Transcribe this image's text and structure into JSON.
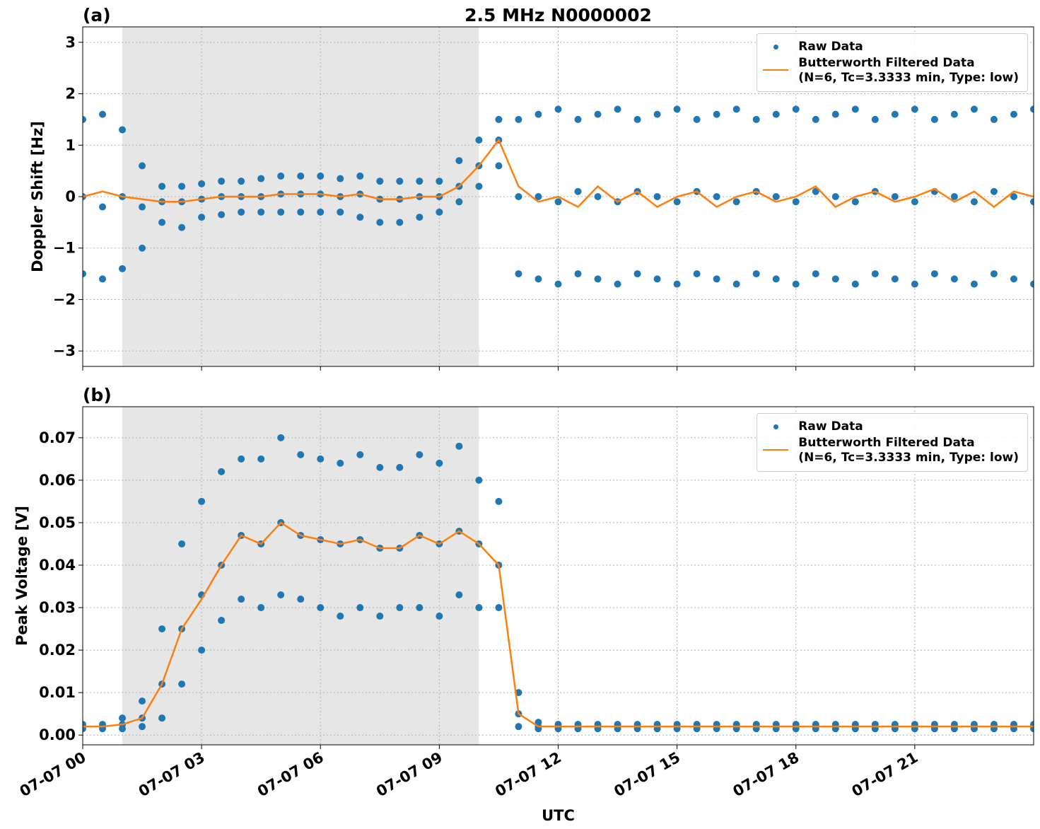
{
  "chart_data": [
    {
      "type": "scatter",
      "panel_label": "(a)",
      "title": "2.5 MHz N0000002",
      "ylabel": "Doppler Shift [Hz]",
      "xlim": [
        0,
        24
      ],
      "ylim": [
        -3.3,
        3.3
      ],
      "xticks": [
        {
          "value": 0,
          "label": "07-07 00"
        },
        {
          "value": 3,
          "label": "07-07 03"
        },
        {
          "value": 6,
          "label": "07-07 06"
        },
        {
          "value": 9,
          "label": "07-07 09"
        },
        {
          "value": 12,
          "label": "07-07 12"
        },
        {
          "value": 15,
          "label": "07-07 15"
        },
        {
          "value": 18,
          "label": "07-07 18"
        },
        {
          "value": 21,
          "label": "07-07 21"
        }
      ],
      "yticks": [
        {
          "value": -3,
          "label": "−3"
        },
        {
          "value": -2,
          "label": "−2"
        },
        {
          "value": -1,
          "label": "−1"
        },
        0,
        1,
        2,
        3
      ],
      "shaded_xrange": [
        1,
        10
      ],
      "grid": true,
      "legend": "upper right",
      "series": [
        {
          "name": "Raw Data",
          "type": "scatter",
          "color": "#1f77b4",
          "x": [
            0,
            0,
            0,
            0.5,
            0.5,
            0.5,
            1,
            1,
            1,
            1.5,
            1.5,
            1.5,
            2,
            2,
            2,
            2.5,
            2.5,
            2.5,
            3,
            3,
            3,
            3.5,
            3.5,
            3.5,
            4,
            4,
            4,
            4.5,
            4.5,
            4.5,
            5,
            5,
            5,
            5.5,
            5.5,
            5.5,
            6,
            6,
            6,
            6.5,
            6.5,
            6.5,
            7,
            7,
            7,
            7.5,
            7.5,
            7.5,
            8,
            8,
            8,
            8.5,
            8.5,
            8.5,
            9,
            9,
            9,
            9.5,
            9.5,
            9.5,
            10,
            10,
            10,
            10.5,
            10.5,
            10.5,
            11,
            11,
            11,
            11.5,
            11.5,
            11.5,
            12,
            12,
            12,
            12.5,
            12.5,
            12.5,
            13,
            13,
            13,
            13.5,
            13.5,
            13.5,
            14,
            14,
            14,
            14.5,
            14.5,
            14.5,
            15,
            15,
            15,
            15.5,
            15.5,
            15.5,
            16,
            16,
            16,
            16.5,
            16.5,
            16.5,
            17,
            17,
            17,
            17.5,
            17.5,
            17.5,
            18,
            18,
            18,
            18.5,
            18.5,
            18.5,
            19,
            19,
            19,
            19.5,
            19.5,
            19.5,
            20,
            20,
            20,
            20.5,
            20.5,
            20.5,
            21,
            21,
            21,
            21.5,
            21.5,
            21.5,
            22,
            22,
            22,
            22.5,
            22.5,
            22.5,
            23,
            23,
            23,
            23.5,
            23.5,
            23.5,
            24,
            24,
            24
          ],
          "values": [
            1.5,
            0,
            -1.5,
            1.6,
            -0.2,
            -1.6,
            1.3,
            0,
            -1.4,
            0.6,
            -0.2,
            -1.0,
            0.2,
            -0.1,
            -0.5,
            0.2,
            -0.1,
            -0.6,
            0.25,
            -0.05,
            -0.4,
            0.3,
            0,
            -0.35,
            0.3,
            0,
            -0.3,
            0.35,
            0,
            -0.3,
            0.4,
            0.05,
            -0.3,
            0.4,
            0.05,
            -0.3,
            0.4,
            0.05,
            -0.3,
            0.35,
            0,
            -0.3,
            0.4,
            0.05,
            -0.4,
            0.3,
            -0.05,
            -0.5,
            0.3,
            -0.05,
            -0.5,
            0.3,
            0,
            -0.4,
            0.3,
            0,
            -0.3,
            0.7,
            0.2,
            -0.1,
            1.1,
            0.6,
            0.2,
            1.5,
            1.1,
            0.6,
            1.5,
            0,
            -1.5,
            1.6,
            0,
            -1.6,
            1.7,
            -0.1,
            -1.7,
            1.5,
            0.1,
            -1.5,
            1.6,
            0,
            -1.6,
            1.7,
            -0.1,
            -1.7,
            1.5,
            0.1,
            -1.5,
            1.6,
            0,
            -1.6,
            1.7,
            -0.1,
            -1.7,
            1.5,
            0.1,
            -1.5,
            1.6,
            0,
            -1.6,
            1.7,
            -0.1,
            -1.7,
            1.5,
            0.1,
            -1.5,
            1.6,
            0,
            -1.6,
            1.7,
            -0.1,
            -1.7,
            1.5,
            0.1,
            -1.5,
            1.6,
            0,
            -1.6,
            1.7,
            -0.1,
            -1.7,
            1.5,
            0.1,
            -1.5,
            1.6,
            0,
            -1.6,
            1.7,
            -0.1,
            -1.7,
            1.5,
            0.1,
            -1.5,
            1.6,
            0,
            -1.6,
            1.7,
            -0.1,
            -1.7,
            1.5,
            0.1,
            -1.5,
            1.6,
            0,
            -1.6,
            1.7,
            -0.1,
            -1.7
          ]
        },
        {
          "name": "Butterworth Filtered Data\n(N=6, Tc=3.3333 min, Type: low)",
          "type": "line",
          "color": "#ff7f0e",
          "x": [
            0,
            0.5,
            1,
            1.5,
            2,
            2.5,
            3,
            3.5,
            4,
            4.5,
            5,
            5.5,
            6,
            6.5,
            7,
            7.5,
            8,
            8.5,
            9,
            9.5,
            10,
            10.5,
            11,
            11.5,
            12,
            12.5,
            13,
            13.5,
            14,
            14.5,
            15,
            15.5,
            16,
            16.5,
            17,
            17.5,
            18,
            18.5,
            19,
            19.5,
            20,
            20.5,
            21,
            21.5,
            22,
            22.5,
            23,
            23.5,
            24
          ],
          "values": [
            0,
            0.1,
            0,
            -0.05,
            -0.1,
            -0.1,
            -0.05,
            0,
            0,
            0,
            0.05,
            0.05,
            0.05,
            0,
            0.05,
            -0.05,
            -0.05,
            0,
            0,
            0.2,
            0.6,
            1.1,
            0.2,
            -0.1,
            0,
            -0.2,
            0.2,
            -0.1,
            0.1,
            -0.2,
            0,
            0.1,
            -0.2,
            0,
            0.1,
            -0.1,
            0,
            0.2,
            -0.2,
            0,
            0.1,
            -0.1,
            0,
            0.15,
            -0.1,
            0.1,
            -0.2,
            0.1,
            0
          ]
        }
      ]
    },
    {
      "type": "scatter",
      "panel_label": "(b)",
      "ylabel": "Peak Voltage [V]",
      "xlabel": "UTC",
      "xlim": [
        0,
        24
      ],
      "ylim": [
        -0.0023,
        0.0773
      ],
      "xticks": [
        {
          "value": 0,
          "label": "07-07 00"
        },
        {
          "value": 3,
          "label": "07-07 03"
        },
        {
          "value": 6,
          "label": "07-07 06"
        },
        {
          "value": 9,
          "label": "07-07 09"
        },
        {
          "value": 12,
          "label": "07-07 12"
        },
        {
          "value": 15,
          "label": "07-07 15"
        },
        {
          "value": 18,
          "label": "07-07 18"
        },
        {
          "value": 21,
          "label": "07-07 21"
        }
      ],
      "yticks": [
        {
          "value": 0,
          "label": "0.00"
        },
        0.01,
        0.02,
        0.03,
        0.04,
        0.05,
        0.06,
        0.07
      ],
      "shaded_xrange": [
        1,
        10
      ],
      "grid": true,
      "legend": "upper right",
      "series": [
        {
          "name": "Raw Data",
          "type": "scatter",
          "color": "#1f77b4",
          "x": [
            0,
            0,
            0,
            0.5,
            0.5,
            0.5,
            1,
            1,
            1,
            1.5,
            1.5,
            1.5,
            2,
            2,
            2,
            2.5,
            2.5,
            2.5,
            3,
            3,
            3,
            3.5,
            3.5,
            3.5,
            4,
            4,
            4,
            4.5,
            4.5,
            4.5,
            5,
            5,
            5,
            5.5,
            5.5,
            5.5,
            6,
            6,
            6,
            6.5,
            6.5,
            6.5,
            7,
            7,
            7,
            7.5,
            7.5,
            7.5,
            8,
            8,
            8,
            8.5,
            8.5,
            8.5,
            9,
            9,
            9,
            9.5,
            9.5,
            9.5,
            10,
            10,
            10,
            10.5,
            10.5,
            10.5,
            11,
            11,
            11,
            11.5,
            11.5,
            11.5,
            12,
            12,
            12,
            12.5,
            12.5,
            12.5,
            13,
            13,
            13,
            13.5,
            13.5,
            13.5,
            14,
            14,
            14,
            14.5,
            14.5,
            14.5,
            15,
            15,
            15,
            15.5,
            15.5,
            15.5,
            16,
            16,
            16,
            16.5,
            16.5,
            16.5,
            17,
            17,
            17,
            17.5,
            17.5,
            17.5,
            18,
            18,
            18,
            18.5,
            18.5,
            18.5,
            19,
            19,
            19,
            19.5,
            19.5,
            19.5,
            20,
            20,
            20,
            20.5,
            20.5,
            20.5,
            21,
            21,
            21,
            21.5,
            21.5,
            21.5,
            22,
            22,
            22,
            22.5,
            22.5,
            22.5,
            23,
            23,
            23,
            23.5,
            23.5,
            23.5,
            24,
            24,
            24
          ],
          "values": [
            0.0025,
            0.002,
            0.0015,
            0.0025,
            0.002,
            0.0015,
            0.004,
            0.0025,
            0.0015,
            0.008,
            0.004,
            0.002,
            0.025,
            0.012,
            0.004,
            0.045,
            0.025,
            0.012,
            0.055,
            0.033,
            0.02,
            0.062,
            0.04,
            0.027,
            0.065,
            0.047,
            0.032,
            0.065,
            0.045,
            0.03,
            0.07,
            0.05,
            0.033,
            0.066,
            0.047,
            0.032,
            0.065,
            0.046,
            0.03,
            0.064,
            0.045,
            0.028,
            0.066,
            0.046,
            0.03,
            0.063,
            0.044,
            0.028,
            0.063,
            0.044,
            0.03,
            0.066,
            0.047,
            0.03,
            0.064,
            0.045,
            0.028,
            0.068,
            0.048,
            0.033,
            0.06,
            0.045,
            0.03,
            0.055,
            0.04,
            0.03,
            0.01,
            0.005,
            0.002,
            0.003,
            0.002,
            0.0015,
            0.0025,
            0.002,
            0.0015,
            0.0025,
            0.002,
            0.0015,
            0.0025,
            0.002,
            0.0015,
            0.0025,
            0.002,
            0.0015,
            0.0025,
            0.002,
            0.0015,
            0.0025,
            0.002,
            0.0015,
            0.0025,
            0.002,
            0.0015,
            0.0025,
            0.002,
            0.0015,
            0.0025,
            0.002,
            0.0015,
            0.0025,
            0.002,
            0.0015,
            0.0025,
            0.002,
            0.0015,
            0.0025,
            0.002,
            0.0015,
            0.0025,
            0.002,
            0.0015,
            0.0025,
            0.002,
            0.0015,
            0.0025,
            0.002,
            0.0015,
            0.0025,
            0.002,
            0.0015,
            0.0025,
            0.002,
            0.0015,
            0.0025,
            0.002,
            0.0015,
            0.0025,
            0.002,
            0.0015,
            0.0025,
            0.002,
            0.0015,
            0.0025,
            0.002,
            0.0015,
            0.0025,
            0.002,
            0.0015,
            0.0025,
            0.002,
            0.0015,
            0.0025,
            0.002,
            0.0015,
            0.0025,
            0.002,
            0.0015
          ]
        },
        {
          "name": "Butterworth Filtered Data\n(N=6, Tc=3.3333 min, Type: low)",
          "type": "line",
          "color": "#ff7f0e",
          "x": [
            0,
            0.5,
            1,
            1.5,
            2,
            2.5,
            3,
            3.5,
            4,
            4.5,
            5,
            5.5,
            6,
            6.5,
            7,
            7.5,
            8,
            8.5,
            9,
            9.5,
            10,
            10.5,
            11,
            11.5,
            12,
            12.5,
            13,
            13.5,
            14,
            14.5,
            15,
            15.5,
            16,
            16.5,
            17,
            17.5,
            18,
            18.5,
            19,
            19.5,
            20,
            20.5,
            21,
            21.5,
            22,
            22.5,
            23,
            23.5,
            24
          ],
          "values": [
            0.002,
            0.002,
            0.0025,
            0.004,
            0.012,
            0.025,
            0.032,
            0.04,
            0.047,
            0.045,
            0.05,
            0.047,
            0.046,
            0.045,
            0.046,
            0.044,
            0.044,
            0.047,
            0.045,
            0.048,
            0.045,
            0.04,
            0.005,
            0.002,
            0.002,
            0.002,
            0.002,
            0.002,
            0.002,
            0.002,
            0.002,
            0.002,
            0.002,
            0.002,
            0.002,
            0.002,
            0.002,
            0.002,
            0.002,
            0.002,
            0.002,
            0.002,
            0.002,
            0.002,
            0.002,
            0.002,
            0.002,
            0.002,
            0.002
          ]
        }
      ]
    }
  ]
}
